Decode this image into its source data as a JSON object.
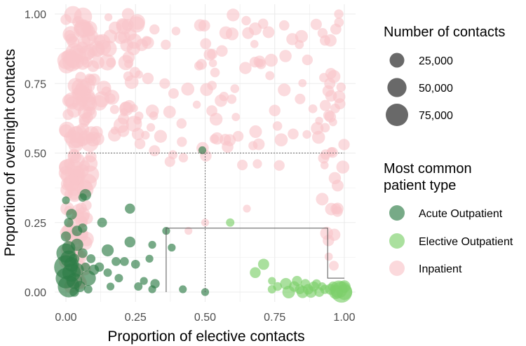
{
  "chart_data": {
    "type": "scatter",
    "title": "",
    "xlabel": "Proportion of elective contacts",
    "ylabel": "Proportion of overnight contacts",
    "xlim": [
      0,
      1
    ],
    "ylim": [
      0,
      1
    ],
    "grid": true,
    "x_ticks": [
      {
        "value": 0.0,
        "label": "0.00"
      },
      {
        "value": 0.25,
        "label": "0.25"
      },
      {
        "value": 0.5,
        "label": "0.50"
      },
      {
        "value": 0.75,
        "label": "0.75"
      },
      {
        "value": 1.0,
        "label": "1.00"
      }
    ],
    "y_ticks": [
      {
        "value": 0.0,
        "label": "0.00"
      },
      {
        "value": 0.25,
        "label": "0.25"
      },
      {
        "value": 0.5,
        "label": "0.50"
      },
      {
        "value": 0.75,
        "label": "0.75"
      },
      {
        "value": 1.0,
        "label": "1.00"
      }
    ],
    "reference_lines": {
      "dotted": [
        {
          "x": [
            0.0,
            1.0
          ],
          "y": [
            0.5,
            0.5
          ]
        },
        {
          "x": [
            0.5,
            0.5
          ],
          "y": [
            0.0,
            0.5
          ]
        }
      ],
      "solid_boundary": {
        "x": [
          0.36,
          0.36,
          0.94,
          0.94,
          1.0
        ],
        "y": [
          0.0,
          0.23,
          0.23,
          0.05,
          0.05
        ]
      }
    },
    "size_legend": {
      "title": "Number of contacts",
      "items": [
        {
          "value": 25000,
          "label": "25,000"
        },
        {
          "value": 50000,
          "label": "50,000"
        },
        {
          "value": 75000,
          "label": "75,000"
        }
      ]
    },
    "color_legend": {
      "title_lines": [
        "Most common",
        "patient type"
      ],
      "items": [
        {
          "name": "Acute Outpatient",
          "color": "#2e7d46"
        },
        {
          "name": "Elective Outpatient",
          "color": "#7ccf6a"
        },
        {
          "name": "Inpatient",
          "color": "#f9c5ca"
        }
      ]
    },
    "series": [
      {
        "name": "Acute Outpatient",
        "points": [
          {
            "x": 0.0,
            "y": 0.05,
            "c": 60000
          },
          {
            "x": 0.0,
            "y": 0.09,
            "c": 85000
          },
          {
            "x": 0.01,
            "y": 0.02,
            "c": 70000
          },
          {
            "x": 0.0,
            "y": 0.14,
            "c": 50000
          },
          {
            "x": 0.02,
            "y": 0.07,
            "c": 45000
          },
          {
            "x": 0.01,
            "y": 0.12,
            "c": 35000
          },
          {
            "x": 0.03,
            "y": 0.04,
            "c": 30000
          },
          {
            "x": 0.02,
            "y": 0.1,
            "c": 25000
          },
          {
            "x": 0.04,
            "y": 0.08,
            "c": 20000
          },
          {
            "x": 0.04,
            "y": 0.17,
            "c": 15000
          },
          {
            "x": 0.0,
            "y": 0.2,
            "c": 8000
          },
          {
            "x": 0.01,
            "y": 0.25,
            "c": 6000
          },
          {
            "x": 0.02,
            "y": 0.28,
            "c": 10000
          },
          {
            "x": 0.04,
            "y": 0.22,
            "c": 9000
          },
          {
            "x": 0.07,
            "y": 0.35,
            "c": 12000
          },
          {
            "x": 0.06,
            "y": 0.23,
            "c": 6000
          },
          {
            "x": 0.07,
            "y": 0.09,
            "c": 5000
          },
          {
            "x": 0.06,
            "y": 0.14,
            "c": 7000
          },
          {
            "x": 0.09,
            "y": 0.12,
            "c": 5000
          },
          {
            "x": 0.08,
            "y": 0.05,
            "c": 28000
          },
          {
            "x": 0.1,
            "y": 0.08,
            "c": 9000
          },
          {
            "x": 0.08,
            "y": 0.01,
            "c": 4000
          },
          {
            "x": 0.12,
            "y": 0.09,
            "c": 6000
          },
          {
            "x": 0.13,
            "y": 0.25,
            "c": 7000
          },
          {
            "x": 0.15,
            "y": 0.15,
            "c": 14000
          },
          {
            "x": 0.15,
            "y": 0.07,
            "c": 4000
          },
          {
            "x": 0.16,
            "y": 0.02,
            "c": 3000
          },
          {
            "x": 0.18,
            "y": 0.11,
            "c": 5000
          },
          {
            "x": 0.19,
            "y": 0.05,
            "c": 4000
          },
          {
            "x": 0.21,
            "y": 0.11,
            "c": 5000
          },
          {
            "x": 0.23,
            "y": 0.3,
            "c": 8000
          },
          {
            "x": 0.23,
            "y": 0.18,
            "c": 10000
          },
          {
            "x": 0.25,
            "y": 0.1,
            "c": 5000
          },
          {
            "x": 0.26,
            "y": 0.02,
            "c": 4000
          },
          {
            "x": 0.28,
            "y": 0.04,
            "c": 3000
          },
          {
            "x": 0.3,
            "y": 0.12,
            "c": 3000
          },
          {
            "x": 0.31,
            "y": 0.17,
            "c": 3000
          },
          {
            "x": 0.31,
            "y": 0.01,
            "c": 3000
          },
          {
            "x": 0.32,
            "y": 0.03,
            "c": 6000
          },
          {
            "x": 0.36,
            "y": 0.22,
            "c": 3000
          },
          {
            "x": 0.38,
            "y": 0.16,
            "c": 3000
          },
          {
            "x": 0.42,
            "y": 0.01,
            "c": 3000
          },
          {
            "x": 0.49,
            "y": 0.51,
            "c": 3000
          },
          {
            "x": 0.5,
            "y": 0.0,
            "c": 3000
          },
          {
            "x": 0.03,
            "y": 0.0,
            "c": 6000
          },
          {
            "x": 0.05,
            "y": 0.02,
            "c": 11000
          },
          {
            "x": 0.01,
            "y": 0.16,
            "c": 18000
          },
          {
            "x": 0.03,
            "y": 0.12,
            "c": 8000
          },
          {
            "x": 0.06,
            "y": 0.34,
            "c": 4000
          },
          {
            "x": 0.0,
            "y": 0.33,
            "c": 3000
          }
        ]
      },
      {
        "name": "Elective Outpatient",
        "points": [
          {
            "x": 0.59,
            "y": 0.25,
            "c": 4000
          },
          {
            "x": 0.68,
            "y": 0.07,
            "c": 10000
          },
          {
            "x": 0.71,
            "y": 0.1,
            "c": 11000
          },
          {
            "x": 0.74,
            "y": 0.01,
            "c": 4000
          },
          {
            "x": 0.74,
            "y": 0.04,
            "c": 3000
          },
          {
            "x": 0.79,
            "y": 0.03,
            "c": 12000
          },
          {
            "x": 0.8,
            "y": 0.0,
            "c": 16000
          },
          {
            "x": 0.82,
            "y": 0.02,
            "c": 9000
          },
          {
            "x": 0.83,
            "y": 0.04,
            "c": 8000
          },
          {
            "x": 0.84,
            "y": 0.01,
            "c": 7000
          },
          {
            "x": 0.85,
            "y": 0.0,
            "c": 14000
          },
          {
            "x": 0.86,
            "y": 0.03,
            "c": 6000
          },
          {
            "x": 0.87,
            "y": 0.01,
            "c": 9000
          },
          {
            "x": 0.88,
            "y": 0.0,
            "c": 12000
          },
          {
            "x": 0.89,
            "y": 0.02,
            "c": 8000
          },
          {
            "x": 0.9,
            "y": 0.03,
            "c": 5000
          },
          {
            "x": 0.91,
            "y": 0.0,
            "c": 7000
          },
          {
            "x": 0.93,
            "y": 0.01,
            "c": 6000
          },
          {
            "x": 0.95,
            "y": 0.01,
            "c": 10000
          },
          {
            "x": 0.97,
            "y": 0.0,
            "c": 22000
          },
          {
            "x": 0.98,
            "y": 0.01,
            "c": 40000
          },
          {
            "x": 0.99,
            "y": 0.0,
            "c": 65000
          },
          {
            "x": 1.0,
            "y": 0.0,
            "c": 30000
          },
          {
            "x": 1.0,
            "y": 0.02,
            "c": 15000
          },
          {
            "x": 0.96,
            "y": 0.02,
            "c": 8000
          },
          {
            "x": 0.76,
            "y": 0.02,
            "c": 5000
          },
          {
            "x": 0.92,
            "y": 0.02,
            "c": 4000
          }
        ]
      },
      {
        "name": "Inpatient",
        "generated": true,
        "count": 330,
        "seed": 7
      }
    ]
  }
}
